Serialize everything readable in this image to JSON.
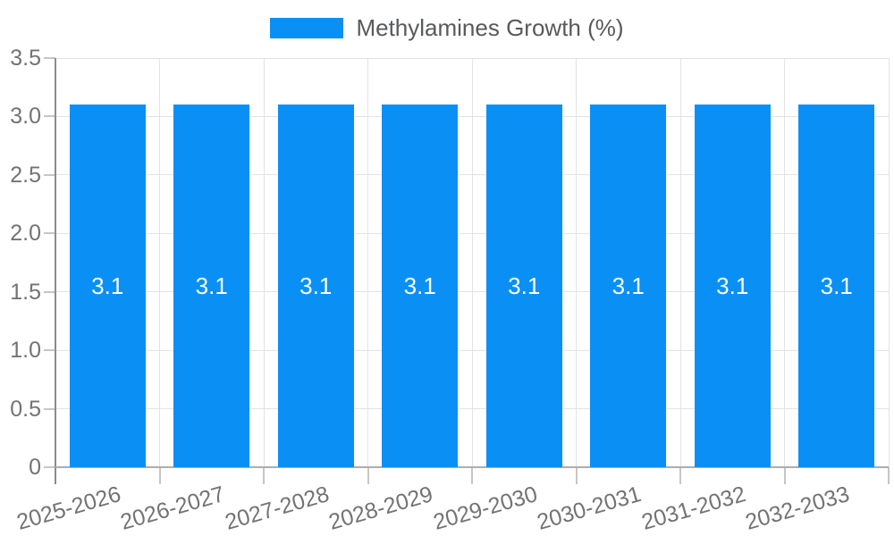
{
  "chart_data": {
    "type": "bar",
    "title": "",
    "legend": "Methylamines Growth (%)",
    "legend_position": "top-center",
    "categories": [
      "2025-2026",
      "2026-2027",
      "2027-2028",
      "2028-2029",
      "2029-2030",
      "2030-2031",
      "2031-2032",
      "2032-2033"
    ],
    "series": [
      {
        "name": "Methylamines Growth (%)",
        "values": [
          3.1,
          3.1,
          3.1,
          3.1,
          3.1,
          3.1,
          3.1,
          3.1
        ]
      }
    ],
    "value_labels": [
      "3.1",
      "3.1",
      "3.1",
      "3.1",
      "3.1",
      "3.1",
      "3.1",
      "3.1"
    ],
    "yticks": [
      "0",
      "0.5",
      "1.0",
      "1.5",
      "2.0",
      "2.5",
      "3.0",
      "3.5"
    ],
    "ylim": [
      0,
      3.5
    ],
    "xlabel": "",
    "ylabel": "",
    "grid": true
  },
  "colors": {
    "bar": "#0a90f5",
    "grid": "#e3e3e3",
    "axis": "#8c8c8c",
    "baseline": "#adadad",
    "tick": "#c6c6c6",
    "tick_text": "#737373",
    "legend_text": "#58595b",
    "bar_label": "#ffffff"
  }
}
